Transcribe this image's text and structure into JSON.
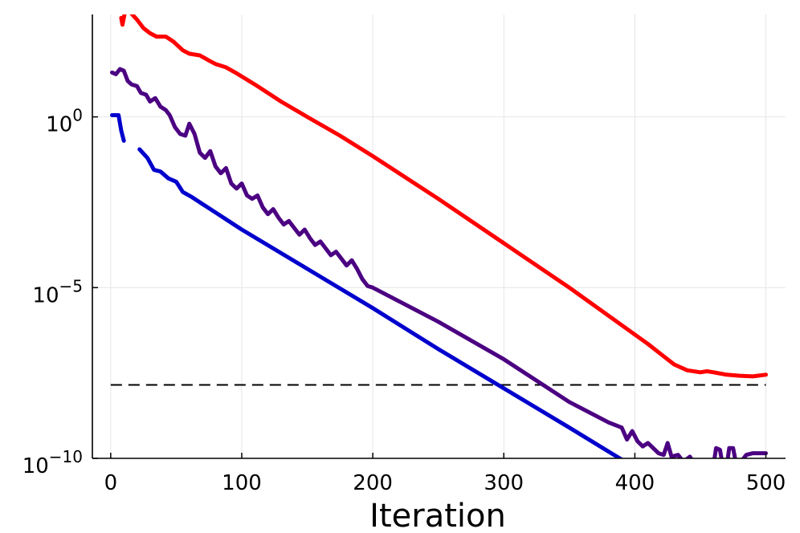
{
  "chart_data": {
    "type": "line",
    "title": "",
    "xlabel": "Iteration",
    "ylabel": "",
    "xlim": [
      -14,
      515
    ],
    "ylim_log10": [
      -10,
      3
    ],
    "grid": true,
    "legend": "none",
    "x_ticks": [
      {
        "value": 0,
        "label": "0"
      },
      {
        "value": 100,
        "label": "100"
      },
      {
        "value": 200,
        "label": "200"
      },
      {
        "value": 300,
        "label": "300"
      },
      {
        "value": 400,
        "label": "400"
      },
      {
        "value": 500,
        "label": "500"
      }
    ],
    "y_ticks": [
      {
        "exponent": 0,
        "base": "10",
        "exp_label": "0"
      },
      {
        "exponent": -5,
        "base": "10",
        "exp_label": "−5"
      },
      {
        "exponent": -10,
        "base": "10",
        "exp_label": "−10"
      }
    ],
    "threshold": {
      "log10_value": -7.85,
      "color": "#000000",
      "style": "dashed"
    },
    "series": [
      {
        "name": "red",
        "color": "#ff0000",
        "log10_values": [
          [
            8,
            2.9
          ],
          [
            9,
            2.7
          ],
          [
            11,
            3.1
          ],
          [
            14,
            3.1
          ],
          [
            20,
            2.85
          ],
          [
            25,
            2.6
          ],
          [
            30,
            2.45
          ],
          [
            35,
            2.35
          ],
          [
            42,
            2.35
          ],
          [
            48,
            2.2
          ],
          [
            55,
            1.95
          ],
          [
            60,
            1.85
          ],
          [
            68,
            1.8
          ],
          [
            75,
            1.65
          ],
          [
            80,
            1.55
          ],
          [
            88,
            1.45
          ],
          [
            95,
            1.3
          ],
          [
            110,
            0.95
          ],
          [
            130,
            0.45
          ],
          [
            150,
            0.0
          ],
          [
            175,
            -0.55
          ],
          [
            200,
            -1.15
          ],
          [
            250,
            -2.4
          ],
          [
            300,
            -3.7
          ],
          [
            350,
            -5.0
          ],
          [
            390,
            -6.1
          ],
          [
            410,
            -6.65
          ],
          [
            420,
            -6.95
          ],
          [
            430,
            -7.25
          ],
          [
            440,
            -7.42
          ],
          [
            450,
            -7.48
          ],
          [
            455,
            -7.45
          ],
          [
            460,
            -7.48
          ],
          [
            470,
            -7.55
          ],
          [
            480,
            -7.58
          ],
          [
            490,
            -7.6
          ],
          [
            500,
            -7.55
          ]
        ]
      },
      {
        "name": "purple",
        "color": "#4b0082",
        "log10_values": [
          [
            1,
            1.3
          ],
          [
            4,
            1.25
          ],
          [
            7,
            1.4
          ],
          [
            10,
            1.35
          ],
          [
            13,
            1.05
          ],
          [
            16,
            0.95
          ],
          [
            20,
            0.9
          ],
          [
            23,
            0.7
          ],
          [
            27,
            0.65
          ],
          [
            30,
            0.45
          ],
          [
            34,
            0.55
          ],
          [
            38,
            0.3
          ],
          [
            42,
            0.2
          ],
          [
            45,
            0.05
          ],
          [
            49,
            -0.3
          ],
          [
            53,
            -0.5
          ],
          [
            57,
            -0.55
          ],
          [
            60,
            -0.2
          ],
          [
            64,
            -0.5
          ],
          [
            68,
            -1.05
          ],
          [
            72,
            -1.2
          ],
          [
            76,
            -1.0
          ],
          [
            80,
            -1.45
          ],
          [
            84,
            -1.65
          ],
          [
            88,
            -1.5
          ],
          [
            92,
            -1.95
          ],
          [
            96,
            -2.1
          ],
          [
            100,
            -1.95
          ],
          [
            104,
            -2.3
          ],
          [
            108,
            -2.4
          ],
          [
            112,
            -2.3
          ],
          [
            116,
            -2.65
          ],
          [
            120,
            -2.85
          ],
          [
            124,
            -2.7
          ],
          [
            128,
            -2.95
          ],
          [
            132,
            -3.15
          ],
          [
            136,
            -3.05
          ],
          [
            140,
            -3.25
          ],
          [
            144,
            -3.45
          ],
          [
            148,
            -3.3
          ],
          [
            152,
            -3.55
          ],
          [
            156,
            -3.75
          ],
          [
            160,
            -3.65
          ],
          [
            164,
            -3.85
          ],
          [
            168,
            -4.05
          ],
          [
            172,
            -3.95
          ],
          [
            176,
            -4.15
          ],
          [
            180,
            -4.35
          ],
          [
            184,
            -4.2
          ],
          [
            188,
            -4.45
          ],
          [
            192,
            -4.75
          ],
          [
            196,
            -4.95
          ],
          [
            200,
            -5.0
          ],
          [
            250,
            -6.0
          ],
          [
            300,
            -7.1
          ],
          [
            350,
            -8.35
          ],
          [
            380,
            -8.95
          ],
          [
            390,
            -9.1
          ],
          [
            394,
            -9.45
          ],
          [
            398,
            -9.2
          ],
          [
            402,
            -9.5
          ],
          [
            406,
            -9.65
          ],
          [
            410,
            -9.55
          ],
          [
            414,
            -9.7
          ],
          [
            418,
            -9.85
          ],
          [
            422,
            -9.9
          ],
          [
            425,
            -9.55
          ],
          [
            428,
            -9.95
          ],
          [
            433,
            -9.9
          ],
          [
            437,
            -10.1
          ],
          [
            442,
            -9.95
          ],
          [
            446,
            -10.2
          ],
          [
            450,
            -10.05
          ],
          [
            455,
            -10.15
          ],
          [
            460,
            -10.2
          ],
          [
            462,
            -9.7
          ],
          [
            465,
            -9.75
          ],
          [
            467,
            -10.2
          ],
          [
            470,
            -10.25
          ],
          [
            472,
            -9.7
          ],
          [
            475,
            -9.7
          ],
          [
            477,
            -10.1
          ],
          [
            480,
            -10.15
          ],
          [
            485,
            -9.9
          ],
          [
            490,
            -9.85
          ],
          [
            500,
            -9.85
          ]
        ]
      },
      {
        "name": "blue",
        "color": "#0000cd",
        "segments": [
          [
            [
              1,
              0.05
            ],
            [
              3,
              0.05
            ],
            [
              6,
              0.05
            ],
            [
              8,
              -0.4
            ],
            [
              10,
              -0.7
            ]
          ],
          [
            [
              22,
              -0.95
            ],
            [
              28,
              -1.2
            ],
            [
              33,
              -1.55
            ],
            [
              38,
              -1.6
            ],
            [
              44,
              -1.8
            ],
            [
              50,
              -1.9
            ],
            [
              55,
              -2.2
            ],
            [
              62,
              -2.35
            ],
            [
              70,
              -2.55
            ],
            [
              80,
              -2.8
            ],
            [
              90,
              -3.05
            ],
            [
              100,
              -3.3
            ],
            [
              150,
              -4.45
            ],
            [
              200,
              -5.6
            ],
            [
              250,
              -6.8
            ],
            [
              300,
              -7.95
            ],
            [
              350,
              -9.1
            ],
            [
              397,
              -10.2
            ]
          ]
        ]
      }
    ]
  }
}
